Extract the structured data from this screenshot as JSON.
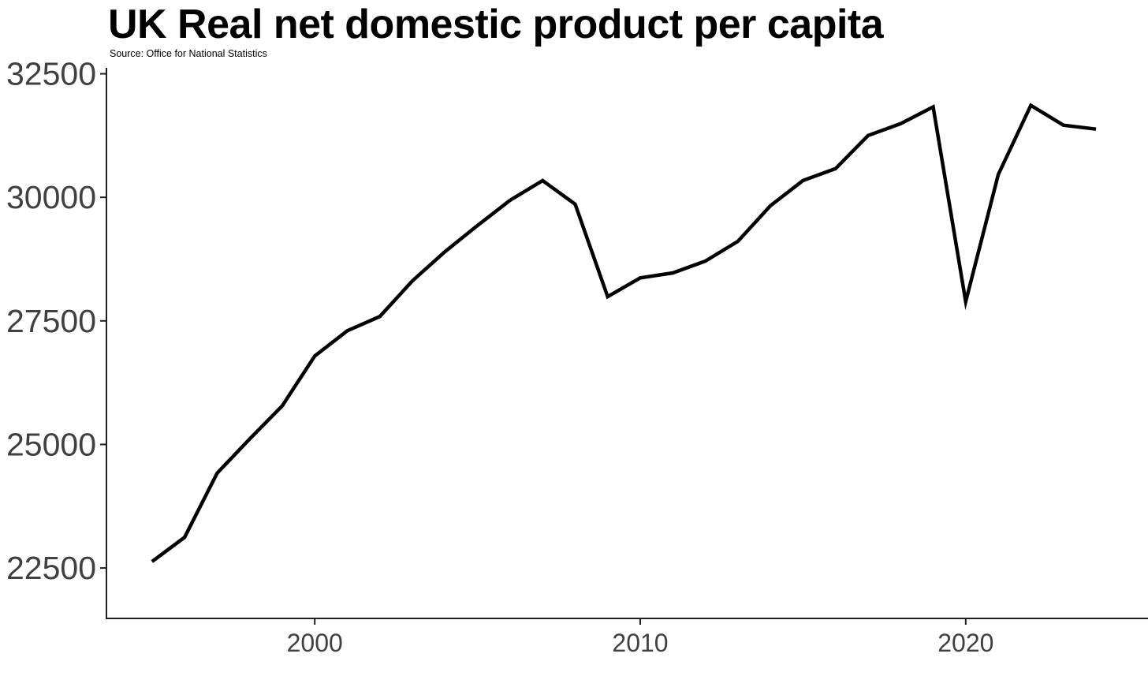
{
  "chart_data": {
    "type": "line",
    "title": "UK Real net domestic product per capita",
    "subtitle": "Source: Office for National Statistics",
    "series_name": "Real net domestic product per capita",
    "x": [
      1995,
      1996,
      1997,
      1998,
      1999,
      2000,
      2001,
      2002,
      2003,
      2004,
      2005,
      2006,
      2007,
      2008,
      2009,
      2010,
      2011,
      2012,
      2013,
      2014,
      2015,
      2016,
      2017,
      2018,
      2019,
      2020,
      2021,
      2022,
      2023,
      2024
    ],
    "values": [
      22630,
      23120,
      24420,
      25110,
      25780,
      26790,
      27300,
      27590,
      28310,
      28900,
      29430,
      29940,
      30340,
      29860,
      27990,
      28370,
      28470,
      28710,
      29110,
      29830,
      30340,
      30580,
      31250,
      31490,
      31830,
      27890,
      30460,
      31860,
      31460,
      31380
    ],
    "xlabel": "",
    "ylabel": "",
    "x_ticks": [
      2000,
      2010,
      2020
    ],
    "y_ticks": [
      22500,
      25000,
      27500,
      30000,
      32500
    ],
    "xlim": [
      1993.6,
      2025.6
    ],
    "ylim": [
      21480,
      32620
    ],
    "grid": false,
    "legend": false,
    "line_color": "#000000",
    "line_width": 4.5,
    "axis_color": "#1f1f1f",
    "tick_text_color": "#404040",
    "background_color": "#ffffff"
  }
}
